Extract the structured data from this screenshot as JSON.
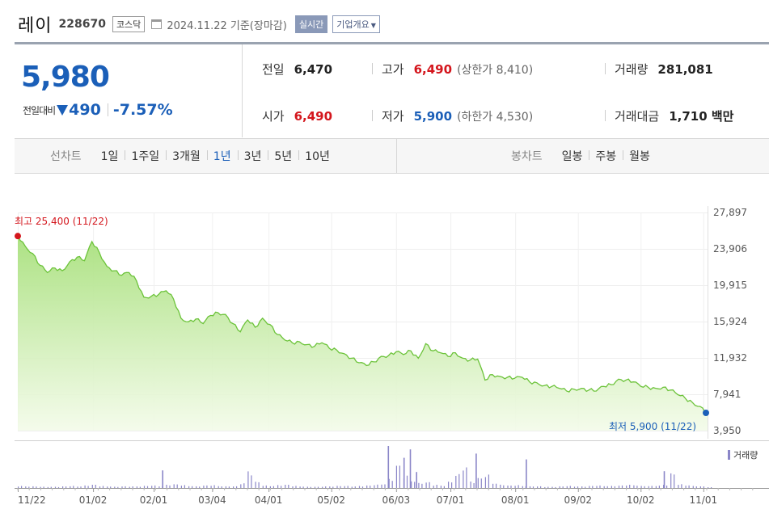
{
  "header": {
    "company_name": "레이",
    "code": "228670",
    "market": "코스닥",
    "date": "2024.11.22  기준(장마감)",
    "realtime_label": "실시간",
    "company_info_label": "기업개요"
  },
  "quote": {
    "price": "5,980",
    "change_label": "전일대비",
    "change_amount": "490",
    "change_rate": "-7.57%",
    "direction": "down"
  },
  "stats": {
    "prev_close_label": "전일",
    "prev_close": "6,470",
    "high_label": "고가",
    "high": "6,490",
    "upper_limit": "(상한가 8,410)",
    "volume_label": "거래량",
    "volume": "281,081",
    "open_label": "시가",
    "open": "6,490",
    "low_label": "저가",
    "low": "5,900",
    "lower_limit": "(하한가 4,530)",
    "amount_label": "거래대금",
    "amount": "1,710 백만"
  },
  "periods": {
    "line_chart_label": "선차트",
    "line_items": [
      "1일",
      "1주일",
      "3개월",
      "1년",
      "3년",
      "5년",
      "10년"
    ],
    "active": "1년",
    "candle_chart_label": "봉차트",
    "candle_items": [
      "일봉",
      "주봉",
      "월봉"
    ]
  },
  "colors": {
    "price_up": "#d4161d",
    "price_down": "#1b5fb8",
    "line": "#6cc33a",
    "area_top": "#a8e07c",
    "volume": "#8a86c8"
  },
  "chart_data": {
    "type": "area",
    "y_ticks": [
      "27,897",
      "23,906",
      "19,915",
      "15,924",
      "11,932",
      "7,941",
      "3,950"
    ],
    "ylim": [
      3950,
      27897
    ],
    "x_ticks": [
      "11/22",
      "01/02",
      "02/01",
      "03/04",
      "04/01",
      "05/02",
      "06/03",
      "07/01",
      "08/01",
      "09/02",
      "10/02",
      "11/01"
    ],
    "x_tick_positions": [
      0,
      0.1637,
      0.2955,
      0.4227,
      0.5454,
      0.6818,
      0.8227,
      0.9409,
      1.0818,
      1.2182,
      1.3545,
      1.4909
    ],
    "high_annotation": "최고 25,400 (11/22)",
    "low_annotation": "최저 5,900 (11/22)",
    "high": 25400,
    "low": 5900,
    "prices": [
      25400,
      24200,
      23400,
      22100,
      21300,
      21800,
      21500,
      22500,
      23000,
      22600,
      24700,
      23500,
      22000,
      21500,
      21000,
      21300,
      20400,
      18600,
      18700,
      18900,
      19300,
      18400,
      16300,
      15900,
      16200,
      15700,
      16600,
      16900,
      16700,
      15700,
      14800,
      16100,
      15300,
      16300,
      15600,
      14500,
      13900,
      13600,
      13700,
      13400,
      13200,
      13600,
      13000,
      12800,
      12400,
      11900,
      11400,
      11100,
      11500,
      12100,
      12200,
      12600,
      12300,
      12700,
      11900,
      13500,
      12700,
      12500,
      12100,
      12500,
      11900,
      11700,
      11800,
      9500,
      10100,
      9900,
      9800,
      9700,
      9800,
      9300,
      9200,
      8900,
      8800,
      8600,
      8300,
      8500,
      8600,
      8400,
      8300,
      8800,
      9000,
      9600,
      9500,
      9300,
      8800,
      8700,
      8600,
      8700,
      8400,
      7900,
      7500,
      7000,
      6600,
      5900
    ],
    "volume_label": "거래량",
    "volume_rel": [
      0.05,
      0.04,
      0.04,
      0.03,
      0.03,
      0.03,
      0.04,
      0.05,
      0.04,
      0.06,
      0.08,
      0.05,
      0.04,
      0.03,
      0.04,
      0.04,
      0.04,
      0.05,
      0.06,
      0.05,
      0.08,
      0.09,
      0.07,
      0.05,
      0.04,
      0.06,
      0.07,
      0.05,
      0.04,
      0.04,
      0.12,
      0.42,
      0.15,
      0.06,
      0.05,
      0.07,
      0.08,
      0.05,
      0.04,
      0.03,
      0.03,
      0.04,
      0.04,
      0.05,
      0.05,
      0.04,
      0.05,
      0.06,
      0.08,
      0.1,
      0.22,
      0.55,
      0.3,
      0.18,
      0.12,
      0.14,
      0.08,
      0.06,
      0.15,
      0.33,
      0.54,
      0.16,
      0.24,
      0.32,
      0.12,
      0.08,
      0.06,
      0.07,
      0.05,
      0.04,
      0.04,
      0.03,
      0.03,
      0.04,
      0.05,
      0.04,
      0.04,
      0.05,
      0.06,
      0.05,
      0.05,
      0.06,
      0.08,
      0.07,
      0.05,
      0.05,
      0.06,
      0.08,
      0.35,
      0.09,
      0.07,
      0.05,
      0.04,
      0.02
    ],
    "volume_spikes": [
      {
        "at": 0.2091,
        "rel": 0.42
      },
      {
        "at": 0.5364,
        "rel": 1.0
      },
      {
        "at": 0.5591,
        "rel": 0.72
      },
      {
        "at": 0.5682,
        "rel": 0.92
      },
      {
        "at": 0.5773,
        "rel": 0.38
      },
      {
        "at": 0.6636,
        "rel": 0.82
      },
      {
        "at": 0.7364,
        "rel": 0.68
      },
      {
        "at": 0.9364,
        "rel": 0.4
      }
    ]
  }
}
